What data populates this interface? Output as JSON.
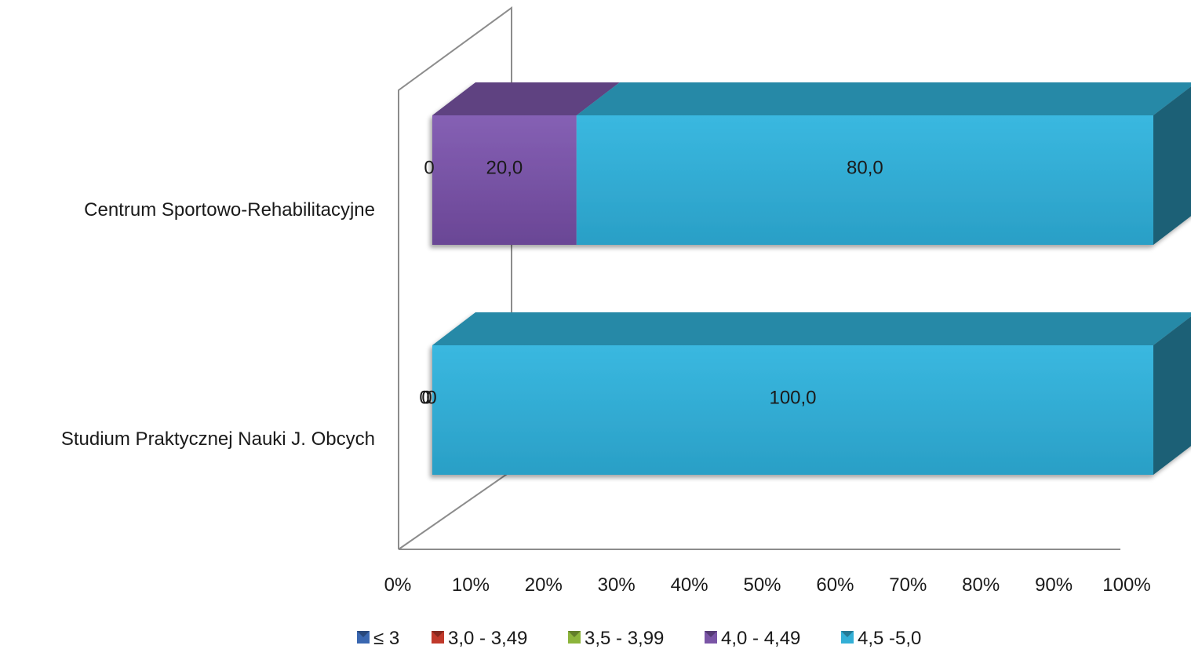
{
  "chart_data": {
    "type": "bar",
    "orientation": "horizontal",
    "stacked": "percent",
    "three_d": true,
    "categories": [
      "Centrum Sportowo-Rehabilitacyjne",
      "Studium Praktycznej Nauki J. Obcych"
    ],
    "series": [
      {
        "name": "≤ 3",
        "color": "#3a67b0",
        "values": [
          0,
          0
        ],
        "labels": [
          "",
          "0"
        ]
      },
      {
        "name": "3,0 - 3,49",
        "color": "#c0392b",
        "values": [
          0,
          0
        ],
        "labels": [
          "",
          "0"
        ]
      },
      {
        "name": "3,5 - 3,99",
        "color": "#8cb43c",
        "values": [
          0,
          0
        ],
        "labels": [
          "0",
          ""
        ]
      },
      {
        "name": "4,0 - 4,49",
        "color": "#7a55a6",
        "values": [
          20.0,
          0
        ],
        "labels": [
          "20,0",
          "0"
        ]
      },
      {
        "name": "4,5 -5,0",
        "color": "#33afd6",
        "values": [
          80.0,
          100.0
        ],
        "labels": [
          "80,0",
          "100,0"
        ]
      }
    ],
    "xlim": [
      0,
      100
    ],
    "x_ticks": [
      "0%",
      "10%",
      "20%",
      "30%",
      "40%",
      "50%",
      "60%",
      "70%",
      "80%",
      "90%",
      "100%"
    ],
    "legend": "bottom",
    "grid": false
  }
}
